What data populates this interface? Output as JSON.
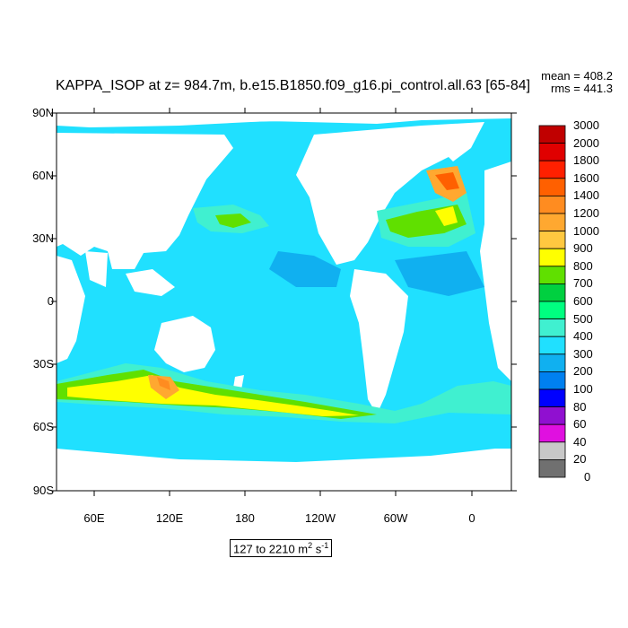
{
  "title": "KAPPA_ISOP at z= 984.7m, b.e15.B1850.f09_g16.pi_control.all.63 [65-84]",
  "stats": {
    "mean": "mean = 408.2",
    "rms": "rms = 441.3"
  },
  "range_label": {
    "text": "127 to 2210 m",
    "sup1": "2",
    "mid": " s",
    "sup2": "-1"
  },
  "axes": {
    "y_ticks": [
      "90N",
      "60N",
      "30N",
      "0",
      "30S",
      "60S",
      "90S"
    ],
    "x_ticks": [
      "60E",
      "120E",
      "180",
      "120W",
      "60W",
      "0"
    ]
  },
  "colorbar": {
    "labels": [
      "3000",
      "2000",
      "1800",
      "1600",
      "1400",
      "1200",
      "1000",
      "900",
      "800",
      "700",
      "600",
      "500",
      "400",
      "300",
      "200",
      "100",
      "80",
      "60",
      "40",
      "20",
      "0"
    ],
    "colors": [
      "#c00000",
      "#e00000",
      "#ff2000",
      "#ff6000",
      "#ff8c20",
      "#ffa830",
      "#ffc840",
      "#ffff00",
      "#60e000",
      "#00d040",
      "#00ff80",
      "#40f0d0",
      "#20e0ff",
      "#10b0f0",
      "#0080f0",
      "#0000ff",
      "#9010d0",
      "#e010e0",
      "#c8c8c8",
      "#707070"
    ]
  },
  "map": {
    "ocean_base": "#20e0ff",
    "land": "#ffffff"
  }
}
